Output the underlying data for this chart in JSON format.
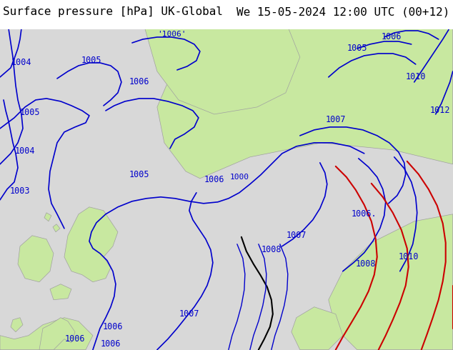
{
  "title_left": "Surface pressure [hPa] UK-Global",
  "title_right": "We 15-05-2024 12:00 UTC (00+12)",
  "bg_color": "#d8d8d8",
  "land_color": "#c8e8a0",
  "text_color": "#000000",
  "isobar_color_blue": "#0000cc",
  "isobar_color_red": "#cc0000",
  "isobar_color_black": "#000000",
  "bottom_bar_color": "#ffffff",
  "bottom_bar_height": 0.072,
  "font_size_bottom": 11.5,
  "font_name": "monospace"
}
